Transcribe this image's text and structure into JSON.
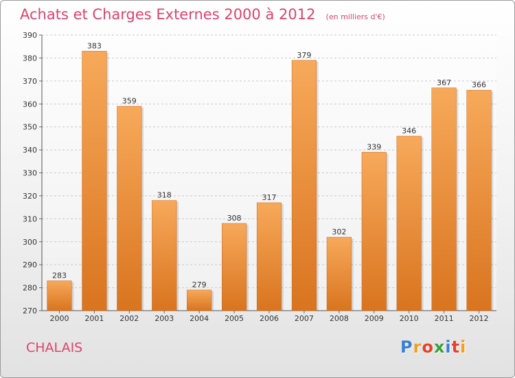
{
  "title": "Achats et Charges Externes 2000 à 2012",
  "unit_note": "(en milliers d'€)",
  "place": "CHALAIS",
  "logo": {
    "text": "Proxiti",
    "colors": [
      "#3a7fd5",
      "#f0a020",
      "#e8402a",
      "#3aa03a",
      "#3a7fd5",
      "#e8402a",
      "#f0a020"
    ]
  },
  "colors": {
    "bar_light": "#f7a95a",
    "bar_dark": "#d9741f",
    "accent": "#e0426e",
    "grid": "#c8c8c8"
  },
  "chart_data": {
    "type": "bar",
    "categories": [
      "2000",
      "2001",
      "2002",
      "2003",
      "2004",
      "2005",
      "2006",
      "2007",
      "2008",
      "2009",
      "2010",
      "2011",
      "2012"
    ],
    "values": [
      283,
      383,
      359,
      318,
      279,
      308,
      317,
      379,
      302,
      339,
      346,
      367,
      366
    ],
    "title": "Achats et Charges Externes 2000 à 2012",
    "subtitle": "(en milliers d'€)",
    "xlabel": "",
    "ylabel": "",
    "ylim": [
      270,
      390
    ],
    "yticks": [
      270,
      280,
      290,
      300,
      310,
      320,
      330,
      340,
      350,
      360,
      370,
      380,
      390
    ],
    "grid": true,
    "legend": "none"
  }
}
